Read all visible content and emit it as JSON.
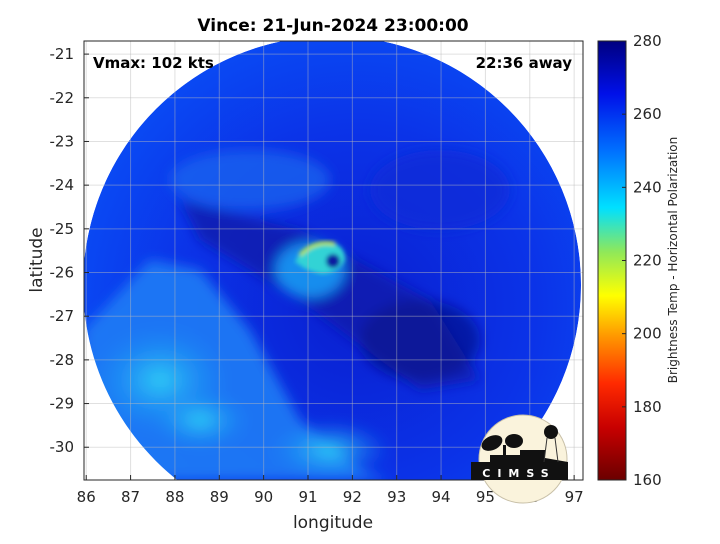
{
  "title": "Vince: 21-Jun-2024 23:00:00",
  "annotations": {
    "vmax": "Vmax: 102 kts",
    "time_offset": "22:36 away"
  },
  "x_axis": {
    "label": "longitude",
    "ticks": [
      86,
      87,
      88,
      89,
      90,
      91,
      92,
      93,
      94,
      95,
      96,
      97
    ],
    "range": [
      85.95,
      97.2
    ]
  },
  "y_axis": {
    "label": "latitude",
    "ticks": [
      -21,
      -22,
      -23,
      -24,
      -25,
      -26,
      -27,
      -28,
      -29,
      -30
    ],
    "range": [
      -30.75,
      -20.7
    ]
  },
  "colorbar": {
    "label": "Brightness Temp - Horizontal Polarization",
    "ticks": [
      280,
      260,
      240,
      220,
      200,
      180,
      160
    ],
    "range": [
      160,
      280
    ],
    "colors": [
      "#6b0000",
      "#c80000",
      "#ff2a00",
      "#ff9a00",
      "#ffff00",
      "#4dd98a",
      "#00e0ff",
      "#0060ff",
      "#0010e0",
      "#000080"
    ]
  },
  "storm_center": {
    "lon": 91.6,
    "lat": -25.8
  },
  "logo": {
    "text": "CIMSS"
  },
  "grid": true
}
